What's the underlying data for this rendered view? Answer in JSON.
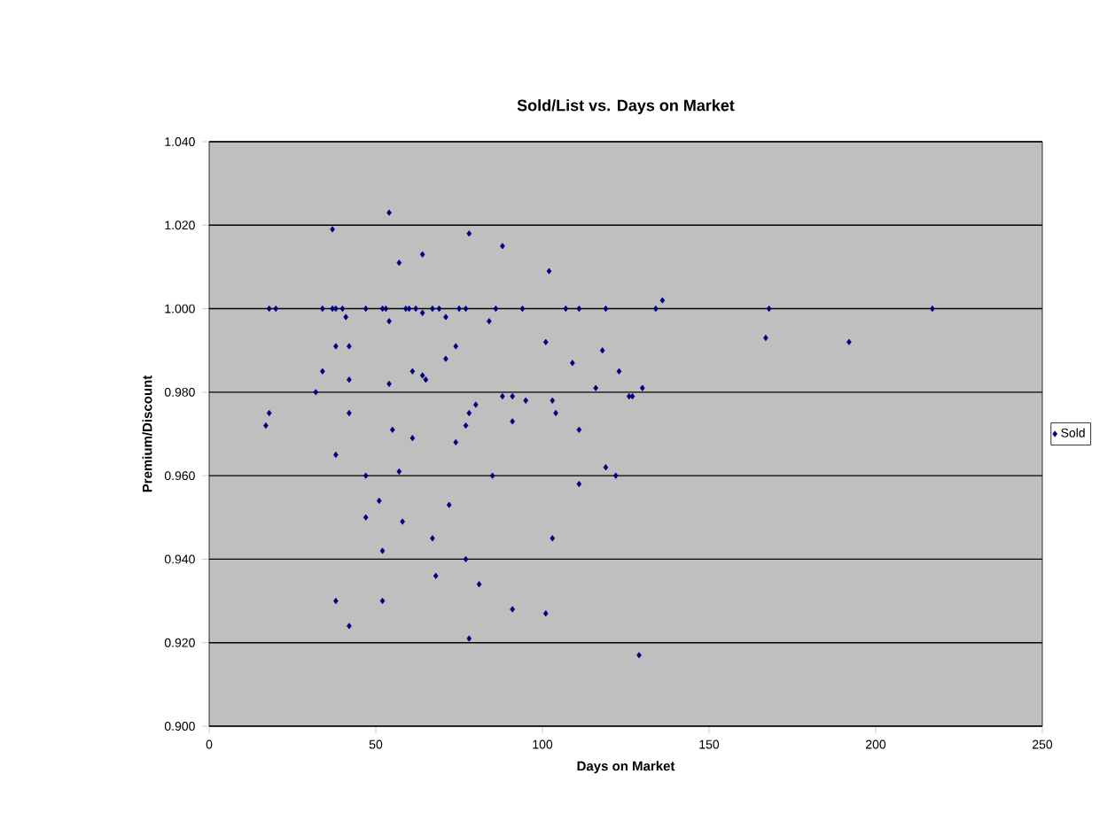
{
  "chart_data": {
    "type": "scatter",
    "title": "Sold/List vs. Days on Market",
    "xlabel": "Days on Market",
    "ylabel": "Premium/Discount",
    "xlim": [
      0,
      250
    ],
    "xticks": [
      0,
      50,
      100,
      150,
      200,
      250
    ],
    "ylim": [
      0.9,
      1.04
    ],
    "yticks": [
      {
        "value": 0.9,
        "label": "0.900"
      },
      {
        "value": 0.92,
        "label": "0.920"
      },
      {
        "value": 0.94,
        "label": "0.940"
      },
      {
        "value": 0.96,
        "label": "0.960"
      },
      {
        "value": 0.98,
        "label": "0.980"
      },
      {
        "value": 1.0,
        "label": "1.000"
      },
      {
        "value": 1.02,
        "label": "1.020"
      },
      {
        "value": 1.04,
        "label": "1.040"
      }
    ],
    "grid": "y",
    "legend": "right",
    "marker": "diamond",
    "series": [
      {
        "name": "Sold",
        "color": "#000080",
        "x": [
          54,
          37,
          57,
          64,
          18,
          20,
          34,
          37,
          38,
          40,
          47,
          52,
          53,
          59,
          60,
          62,
          67,
          69,
          75,
          77,
          86,
          94,
          107,
          111,
          119,
          134,
          168,
          217,
          41,
          54,
          64,
          38,
          42,
          34,
          42,
          61,
          64,
          65,
          54,
          32,
          18,
          17,
          42,
          55,
          61,
          38,
          57,
          47,
          51,
          47,
          58,
          52,
          38,
          52,
          42,
          78,
          88,
          102,
          71,
          84,
          74,
          71,
          101,
          109,
          118,
          123,
          116,
          130,
          88,
          91,
          95,
          103,
          126,
          127,
          80,
          78,
          77,
          104,
          74,
          91,
          111,
          119,
          122,
          85,
          111,
          72,
          67,
          103,
          77,
          68,
          81,
          91,
          101,
          78,
          129,
          136,
          167,
          192
        ],
        "values": [
          1.023,
          1.019,
          1.011,
          1.013,
          1.0,
          1.0,
          1.0,
          1.0,
          1.0,
          1.0,
          1.0,
          1.0,
          1.0,
          1.0,
          1.0,
          1.0,
          1.0,
          1.0,
          1.0,
          1.0,
          1.0,
          1.0,
          1.0,
          1.0,
          1.0,
          1.0,
          1.0,
          1.0,
          0.998,
          0.997,
          0.999,
          0.991,
          0.991,
          0.985,
          0.983,
          0.985,
          0.984,
          0.983,
          0.982,
          0.98,
          0.975,
          0.972,
          0.975,
          0.971,
          0.969,
          0.965,
          0.961,
          0.96,
          0.954,
          0.95,
          0.949,
          0.942,
          0.93,
          0.93,
          0.924,
          1.018,
          1.015,
          1.009,
          0.998,
          0.997,
          0.991,
          0.988,
          0.992,
          0.987,
          0.99,
          0.985,
          0.981,
          0.981,
          0.979,
          0.979,
          0.978,
          0.978,
          0.979,
          0.979,
          0.977,
          0.975,
          0.972,
          0.975,
          0.968,
          0.973,
          0.971,
          0.962,
          0.96,
          0.96,
          0.958,
          0.953,
          0.945,
          0.945,
          0.94,
          0.936,
          0.934,
          0.928,
          0.927,
          0.921,
          0.917,
          1.002,
          0.993,
          0.992
        ]
      }
    ]
  }
}
